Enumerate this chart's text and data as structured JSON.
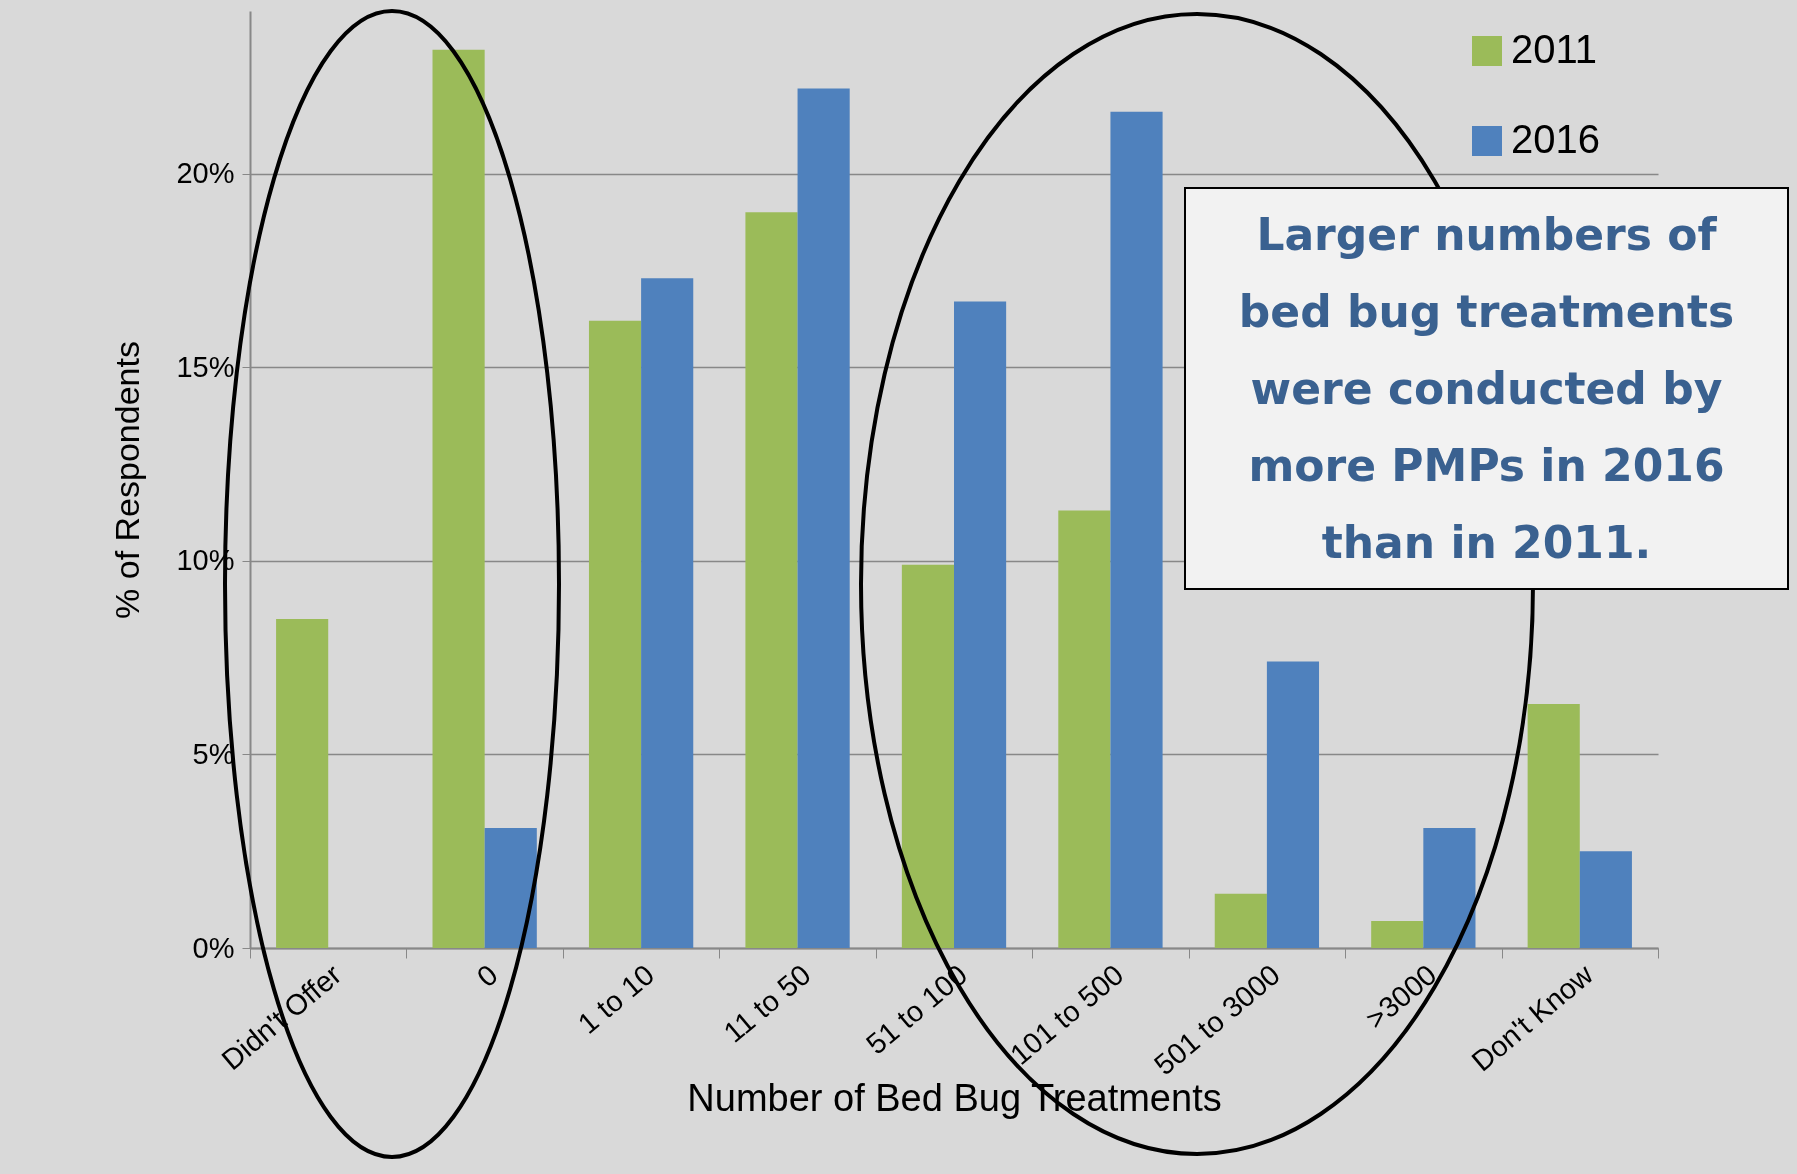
{
  "chart_data": {
    "type": "bar",
    "xlabel": "Number of Bed Bug Treatments",
    "ylabel": "% of Respondents",
    "categories": [
      "Didn't Offer",
      "0",
      "1 to 10",
      "11 to 50",
      "51 to 100",
      "101 to 500",
      "501 to 3000",
      ">3000",
      "Don't Know"
    ],
    "series": [
      {
        "name": "2011",
        "color": "#9bbb59",
        "values": [
          8.5,
          23.2,
          16.2,
          19.0,
          9.9,
          11.3,
          1.4,
          0.7,
          6.3
        ]
      },
      {
        "name": "2016",
        "color": "#4f81bd",
        "values": [
          null,
          3.1,
          17.3,
          22.2,
          16.7,
          21.6,
          7.4,
          3.1,
          2.5
        ]
      }
    ],
    "ylim": [
      0,
      24.2
    ],
    "yticks": [
      {
        "value": 0,
        "label": "0%"
      },
      {
        "value": 5,
        "label": "5%"
      },
      {
        "value": 10,
        "label": "10%"
      },
      {
        "value": 15,
        "label": "15%"
      },
      {
        "value": 20,
        "label": "20%"
      }
    ],
    "grid": "y",
    "legend": "top right",
    "annotations": [
      "Larger numbers of bed bug treatments were conducted by more PMPs in 2016 than in 2011."
    ]
  }
}
